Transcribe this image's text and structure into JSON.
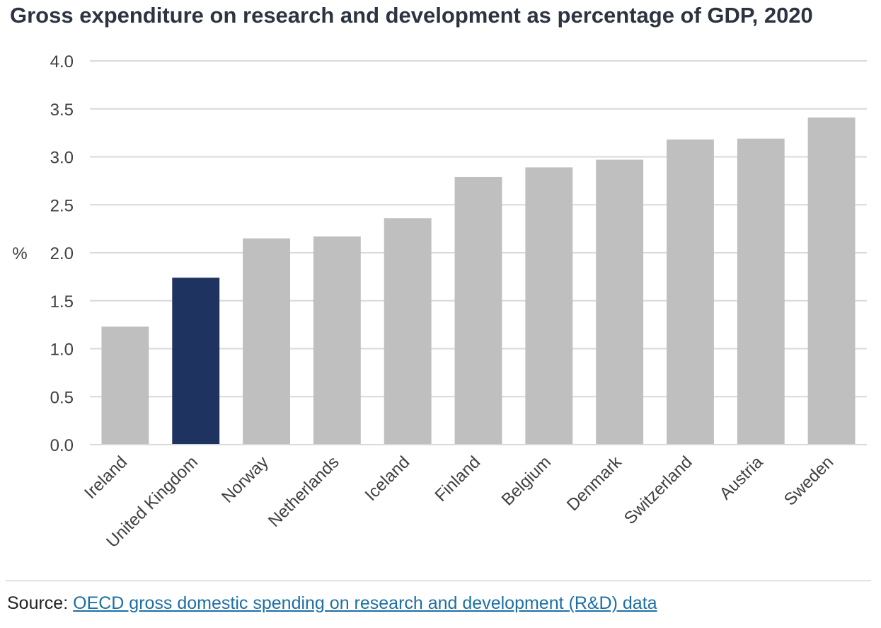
{
  "title": "Gross expenditure on research and development as percentage of GDP, 2020",
  "source": {
    "prefix": "Source:",
    "link_text": "OECD gross domestic spending on research and development (R&D) data"
  },
  "colors": {
    "default_bar": "#bfbfbf",
    "highlight_bar": "#1f3360",
    "gridline": "#d9d9d9",
    "link": "#1d6fa5"
  },
  "chart_data": {
    "type": "bar",
    "title": "Gross expenditure on research and development as percentage of GDP, 2020",
    "xlabel": "",
    "ylabel": "%",
    "ylim": [
      0,
      4
    ],
    "yticks": [
      "0.0",
      "0.5",
      "1.0",
      "1.5",
      "2.0",
      "2.5",
      "3.0",
      "3.5",
      "4.0"
    ],
    "grid": true,
    "categories": [
      "Ireland",
      "United Kingdom",
      "Norway",
      "Netherlands",
      "Iceland",
      "Finland",
      "Belgium",
      "Denmark",
      "Switzerland",
      "Austria",
      "Sweden"
    ],
    "values": [
      1.23,
      1.74,
      2.15,
      2.17,
      2.36,
      2.79,
      2.89,
      2.97,
      3.18,
      3.19,
      3.41
    ],
    "highlight": "United Kingdom"
  }
}
